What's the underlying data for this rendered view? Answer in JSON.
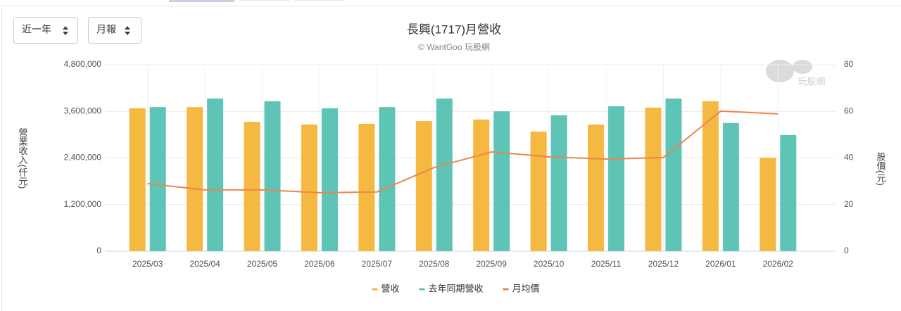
{
  "controls": {
    "range": "近一年",
    "period": "月報"
  },
  "chart_data": {
    "type": "bar",
    "title": "長興(1717)月營收",
    "subtitle": "© WantGoo 玩股網",
    "watermark": "玩股網",
    "y_label": "營業收入(仟元)",
    "y2_label": "股價(元)",
    "categories": [
      "2025/03",
      "2025/04",
      "2025/05",
      "2025/06",
      "2025/07",
      "2025/08",
      "2025/09",
      "2025/10",
      "2025/11",
      "2025/12",
      "2026/01",
      "2026/02"
    ],
    "series": [
      {
        "name": "營收",
        "type": "bar",
        "color": "#f5b942",
        "values": [
          3680000,
          3710000,
          3330000,
          3260000,
          3280000,
          3350000,
          3390000,
          3080000,
          3260000,
          3695000,
          3860000,
          2410000
        ]
      },
      {
        "name": "去年同期營收",
        "type": "bar",
        "color": "#5ec4b6",
        "values": [
          3710000,
          3930000,
          3860000,
          3680000,
          3710000,
          3930000,
          3600000,
          3500000,
          3730000,
          3930000,
          3300000,
          2990000
        ]
      },
      {
        "name": "月均價",
        "type": "line",
        "axis": "y2",
        "color": "#ec8550",
        "values": [
          29.0,
          26.3,
          26.3,
          25.1,
          25.4,
          35.9,
          42.6,
          40.5,
          39.5,
          40.2,
          60.1,
          58.9
        ]
      }
    ],
    "ylim": [
      0,
      4800000
    ],
    "yticks": [
      0,
      {
        "value": 1200000,
        "label": "1,200,000"
      },
      {
        "value": 2400000,
        "label": "2,400,000"
      },
      {
        "value": 3600000,
        "label": "3,600,000"
      },
      {
        "value": 4800000,
        "label": "4,800,000"
      }
    ],
    "y2lim": [
      0,
      80
    ],
    "y2ticks": [
      0,
      20,
      40,
      60,
      80
    ],
    "grid": true,
    "legend": "bottom"
  }
}
